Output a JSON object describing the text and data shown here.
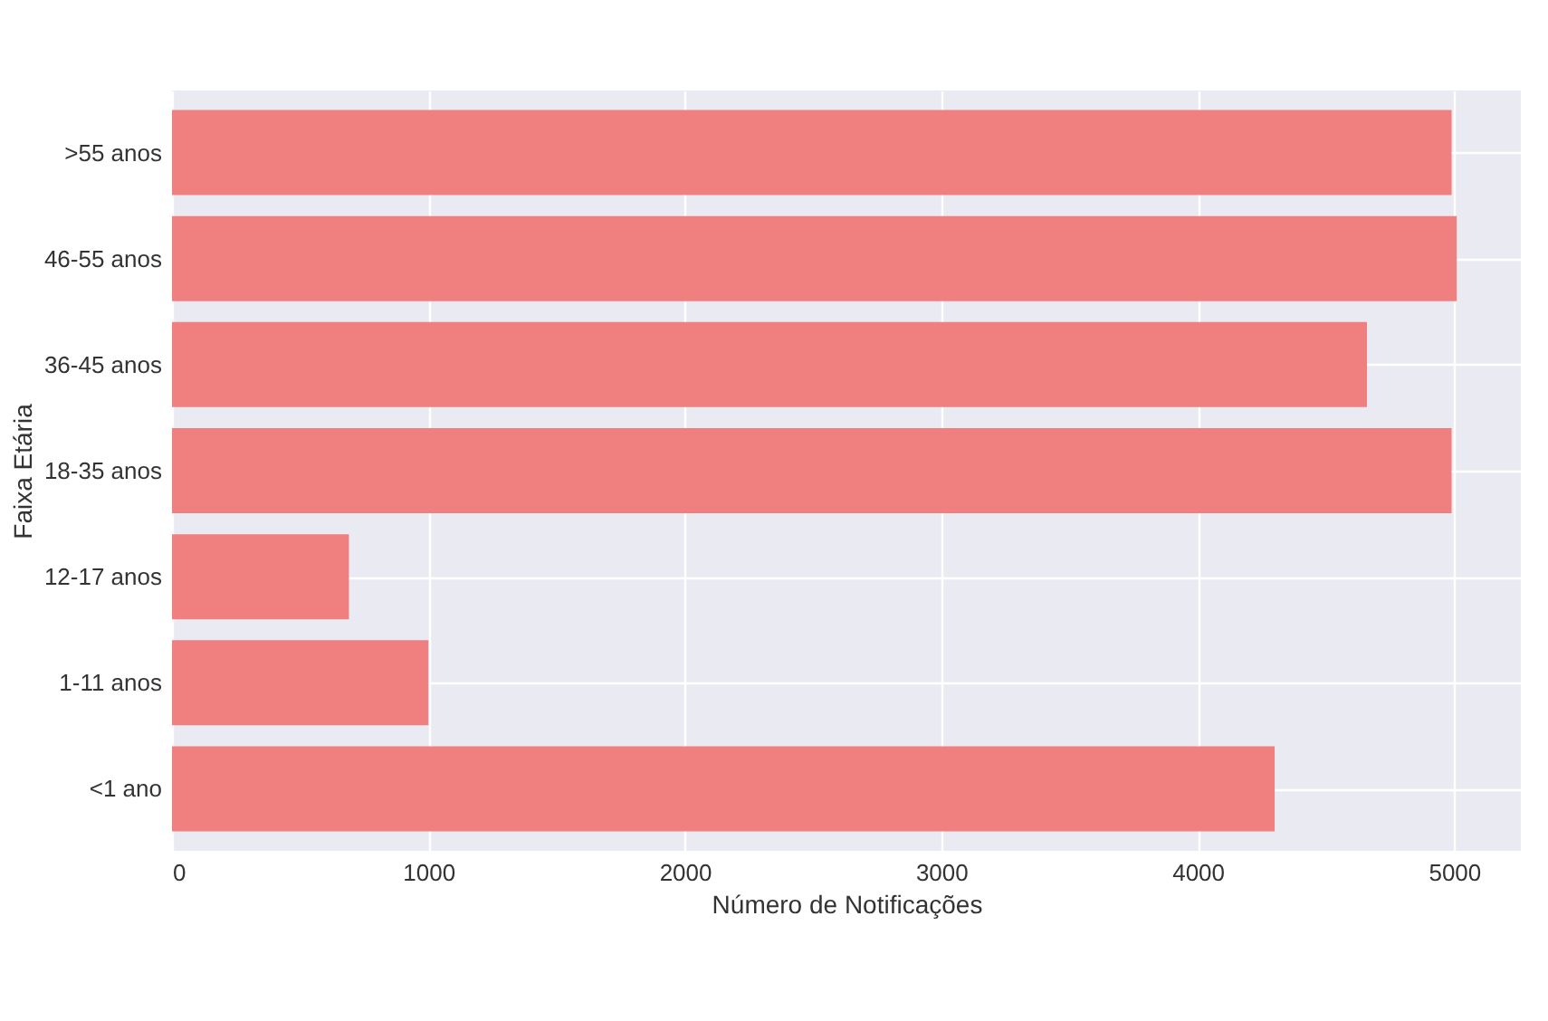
{
  "chart_data": {
    "type": "bar",
    "orientation": "horizontal",
    "xlabel": "Número de Notificações",
    "ylabel": "Faixa Etária",
    "categories": [
      ">55 anos",
      "46-55 anos",
      "36-45 anos",
      "18-35 anos",
      "12-17 anos",
      "1-11 anos",
      "<1 ano"
    ],
    "values": [
      4990,
      5010,
      4660,
      4990,
      690,
      1000,
      4300
    ],
    "color": "#f08080",
    "xlim": [
      0,
      5260
    ],
    "xticks": [
      0,
      1000,
      2000,
      3000,
      4000,
      5000
    ],
    "grid": true
  }
}
